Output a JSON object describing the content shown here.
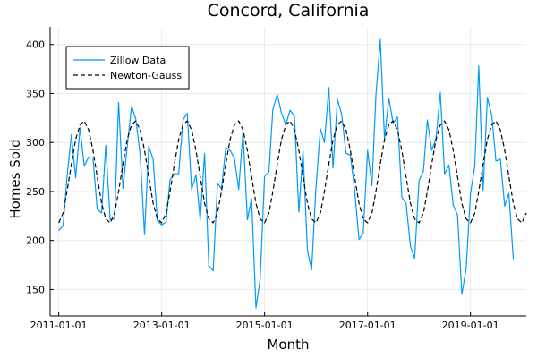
{
  "chart_data": {
    "type": "line",
    "title": "Concord, California",
    "xlabel": "Month",
    "ylabel": "Homes Sold",
    "x_ticks": [
      "2011-01-01",
      "2013-01-01",
      "2015-01-01",
      "2017-01-01",
      "2019-01-01"
    ],
    "y_ticks": [
      150,
      200,
      250,
      300,
      350,
      400
    ],
    "xlim": [
      "2010-11-01",
      "2020-02-01"
    ],
    "ylim": [
      123,
      418
    ],
    "grid": true,
    "legend_position": "top-left",
    "series": [
      {
        "name": "Zillow Data",
        "color": "#009af9",
        "style": "solid",
        "x_start": "2011-01-01",
        "values": [
          210,
          215,
          265,
          308,
          264,
          315,
          276,
          285,
          284,
          232,
          228,
          297,
          221,
          222,
          341,
          253,
          296,
          337,
          324,
          288,
          206,
          296,
          283,
          220,
          216,
          219,
          262,
          268,
          268,
          323,
          330,
          252,
          267,
          221,
          289,
          174,
          169,
          258,
          253,
          295,
          292,
          284,
          252,
          311,
          221,
          243,
          131,
          161,
          265,
          270,
          334,
          349,
          330,
          318,
          333,
          327,
          229,
          292,
          190,
          170,
          255,
          314,
          300,
          356,
          274,
          344,
          329,
          289,
          287,
          252,
          201,
          207,
          292,
          256,
          348,
          405,
          304,
          345,
          320,
          326,
          244,
          238,
          194,
          182,
          261,
          271,
          323,
          292,
          304,
          351,
          268,
          277,
          236,
          226,
          145,
          171,
          248,
          276,
          378,
          251,
          346,
          328,
          281,
          283,
          235,
          248,
          181
        ]
      },
      {
        "name": "Newton-Gauss",
        "color": "#000000",
        "style": "dashed",
        "x_start": "2011-01-01",
        "values": [
          218,
          228,
          250,
          278,
          303,
          318,
          322,
          313,
          292,
          265,
          238,
          222,
          218,
          228,
          250,
          278,
          303,
          318,
          322,
          313,
          292,
          265,
          238,
          222,
          218,
          228,
          250,
          278,
          303,
          318,
          322,
          313,
          292,
          265,
          238,
          222,
          218,
          228,
          250,
          278,
          303,
          318,
          322,
          313,
          292,
          265,
          238,
          222,
          218,
          228,
          250,
          278,
          303,
          318,
          322,
          313,
          292,
          265,
          238,
          222,
          218,
          228,
          250,
          278,
          303,
          318,
          322,
          313,
          292,
          265,
          238,
          222,
          218,
          228,
          250,
          278,
          303,
          318,
          322,
          313,
          292,
          265,
          238,
          222,
          218,
          228,
          250,
          278,
          303,
          318,
          322,
          313,
          292,
          265,
          238,
          222,
          218,
          228,
          250,
          278,
          303,
          318,
          322,
          313,
          292,
          265,
          238,
          222,
          218,
          228
        ]
      }
    ]
  }
}
